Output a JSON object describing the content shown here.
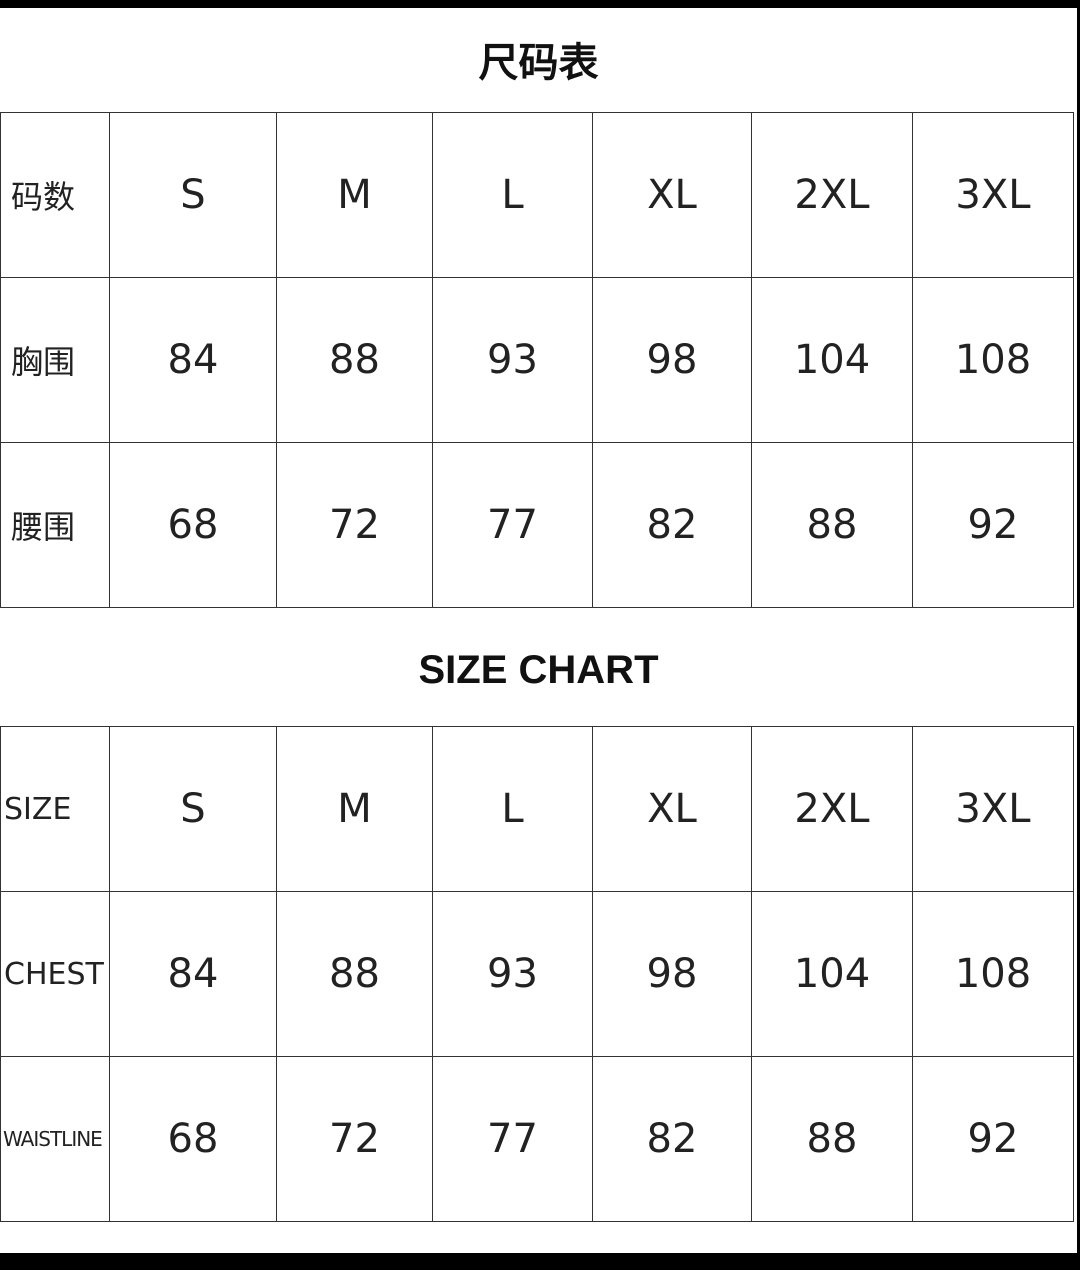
{
  "cn_table": {
    "title": "尺码表",
    "rows": [
      {
        "label": "码数",
        "values": [
          "S",
          "M",
          "L",
          "XL",
          "2XL",
          "3XL"
        ]
      },
      {
        "label": "胸围",
        "values": [
          "84",
          "88",
          "93",
          "98",
          "104",
          "108"
        ]
      },
      {
        "label": "腰围",
        "values": [
          "68",
          "72",
          "77",
          "82",
          "88",
          "92"
        ]
      }
    ]
  },
  "en_table": {
    "title": "SIZE CHART",
    "rows": [
      {
        "label": "SIZE",
        "values": [
          "S",
          "M",
          "L",
          "XL",
          "2XL",
          "3XL"
        ]
      },
      {
        "label": "CHEST",
        "values": [
          "84",
          "88",
          "93",
          "98",
          "104",
          "108"
        ]
      },
      {
        "label": "WAISTLINE",
        "values": [
          "68",
          "72",
          "77",
          "82",
          "88",
          "92"
        ]
      }
    ]
  }
}
